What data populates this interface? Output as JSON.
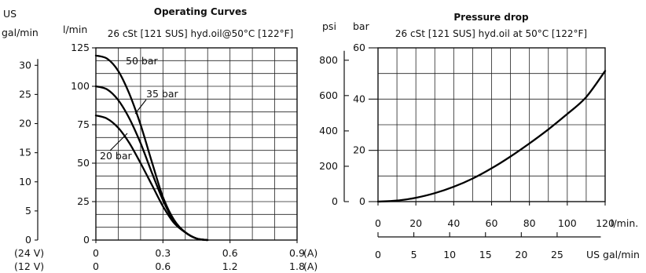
{
  "chart_data": [
    {
      "type": "line",
      "title": "Operating Curves",
      "subtitle": "26 cSt [121 SUS] hyd.oil@50°C [122°F]",
      "ylabel": "l/min",
      "ylabel_secondary": "US gal/min",
      "ylabel_secondary_line1": "US",
      "ylabel_secondary_line2": "gal/min",
      "ylim": [
        0,
        125
      ],
      "yticks": [
        0,
        25,
        50,
        75,
        100,
        125
      ],
      "ylim_secondary": [
        0,
        33
      ],
      "yticks_secondary": [
        0,
        5,
        10,
        15,
        20,
        25,
        30
      ],
      "x_axes": [
        {
          "label": "(24 V)",
          "unit": "(A)",
          "ticks": [
            0,
            0.3,
            0.6,
            0.9
          ],
          "tick_labels": [
            "0",
            "0.3",
            "0.6",
            "0.9"
          ],
          "xlim": [
            0,
            0.9
          ]
        },
        {
          "label": "(12 V)",
          "unit": "(A)",
          "ticks": [
            0,
            0.6,
            1.2,
            1.8
          ],
          "tick_labels": [
            "0",
            "0.6",
            "1.2",
            "1.8"
          ],
          "xlim": [
            0,
            1.8
          ]
        }
      ],
      "grid": true,
      "series": [
        {
          "name": "50 bar",
          "x": [
            0,
            0.05,
            0.1,
            0.15,
            0.2,
            0.25,
            0.3,
            0.35,
            0.4,
            0.45,
            0.5
          ],
          "y": [
            120,
            118,
            110,
            95,
            75,
            51,
            28,
            13,
            5,
            1,
            0
          ]
        },
        {
          "name": "35 bar",
          "x": [
            0,
            0.05,
            0.1,
            0.15,
            0.2,
            0.25,
            0.3,
            0.35,
            0.4,
            0.45,
            0.5
          ],
          "y": [
            100,
            98,
            91,
            79,
            63,
            44,
            26,
            12,
            5,
            1,
            0
          ]
        },
        {
          "name": "20 bar",
          "x": [
            0,
            0.05,
            0.1,
            0.15,
            0.2,
            0.25,
            0.3,
            0.35,
            0.4,
            0.45,
            0.5
          ],
          "y": [
            81,
            79,
            73,
            63,
            50,
            36,
            22,
            11,
            5,
            1,
            0
          ]
        }
      ]
    },
    {
      "type": "line",
      "title": "Pressure drop",
      "subtitle": "26 cSt [121 SUS] hyd.oil at 50°C [122°F]",
      "ylabel": "bar",
      "ylabel_secondary": "psi",
      "ylim": [
        0,
        60
      ],
      "yticks": [
        0,
        20,
        40,
        60
      ],
      "ylim_secondary": [
        0,
        870
      ],
      "yticks_secondary": [
        0,
        200,
        400,
        600,
        800
      ],
      "xlabel": "l/min.",
      "xlim": [
        0,
        120
      ],
      "xticks": [
        0,
        20,
        40,
        60,
        80,
        100,
        120
      ],
      "xlabel_secondary": "US gal/min",
      "xticks_secondary": [
        0,
        5,
        10,
        15,
        20,
        25
      ],
      "grid": true,
      "series": [
        {
          "name": "",
          "x": [
            0,
            10,
            20,
            30,
            40,
            50,
            60,
            70,
            80,
            90,
            100,
            110,
            120
          ],
          "y": [
            0,
            0.4,
            1.5,
            3.3,
            5.8,
            9.0,
            13.0,
            17.6,
            22.7,
            28.2,
            34.2,
            40.8,
            51
          ]
        }
      ]
    }
  ]
}
